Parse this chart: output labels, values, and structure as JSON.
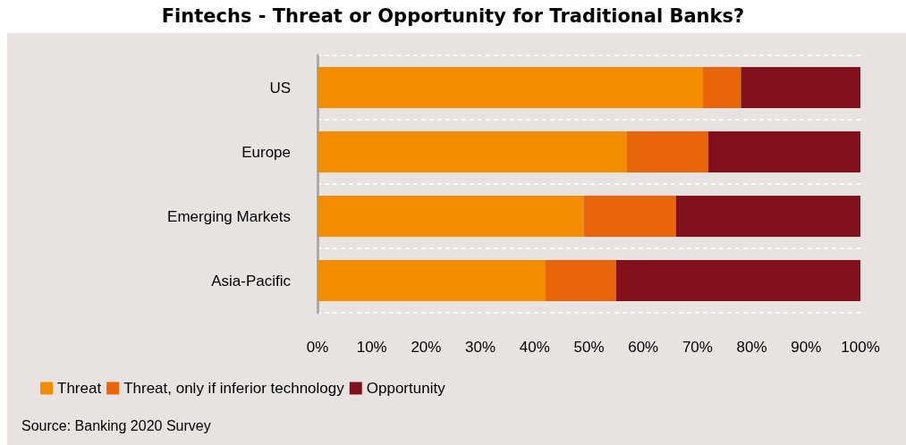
{
  "chart_data": {
    "type": "bar",
    "orientation": "horizontal",
    "stacked": true,
    "title": "Fintechs - Threat or Opportunity for Traditional Banks?",
    "categories": [
      "US",
      "Europe",
      "Emerging Markets",
      "Asia-Pacific"
    ],
    "series": [
      {
        "name": "Threat",
        "color": "#f28c00",
        "values": [
          71,
          57,
          49,
          42
        ]
      },
      {
        "name": "Threat, only if inferior technology",
        "color": "#e8650a",
        "values": [
          7,
          15,
          17,
          13
        ]
      },
      {
        "name": "Opportunity",
        "color": "#82101a",
        "values": [
          22,
          28,
          34,
          45
        ]
      }
    ],
    "xlim": [
      0,
      100
    ],
    "xticks": [
      {
        "value": 0,
        "label": "0%"
      },
      {
        "value": 10,
        "label": "10%"
      },
      {
        "value": 20,
        "label": "20%"
      },
      {
        "value": 30,
        "label": "30%"
      },
      {
        "value": 40,
        "label": "40%"
      },
      {
        "value": 50,
        "label": "50%"
      },
      {
        "value": 60,
        "label": "60%"
      },
      {
        "value": 70,
        "label": "70%"
      },
      {
        "value": 80,
        "label": "80%"
      },
      {
        "value": 90,
        "label": "90%"
      },
      {
        "value": 100,
        "label": "100%"
      }
    ],
    "grid": "y",
    "legend": "bottom left",
    "annotations": [
      "Source: Banking 2020 Survey"
    ]
  }
}
